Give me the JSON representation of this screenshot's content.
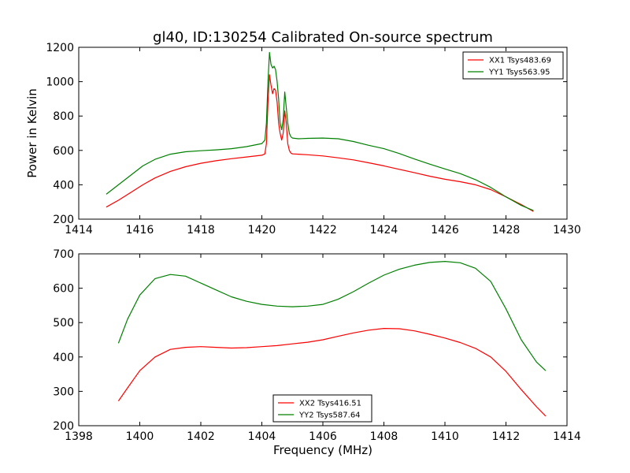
{
  "figure": {
    "title": "gl40, ID:130254 Calibrated On-source spectrum",
    "xlabel": "Frequency (MHz)"
  },
  "chart_data": [
    {
      "type": "line",
      "title": "gl40, ID:130254 Calibrated On-source spectrum",
      "xlabel": "",
      "ylabel": "Power in Kelvin",
      "xlim": [
        1414,
        1430
      ],
      "ylim": [
        200,
        1200
      ],
      "xticks": [
        1414,
        1416,
        1418,
        1420,
        1422,
        1424,
        1426,
        1428,
        1430
      ],
      "yticks": [
        200,
        400,
        600,
        800,
        1000,
        1200
      ],
      "grid": false,
      "legend": "top-right",
      "series": [
        {
          "name": "XX1 Tsys483.69",
          "color": "#ff0000",
          "x": [
            1414.9,
            1415.3,
            1415.7,
            1416.1,
            1416.5,
            1417.0,
            1417.5,
            1418.0,
            1418.5,
            1419.0,
            1419.5,
            1420.0,
            1420.1,
            1420.15,
            1420.2,
            1420.25,
            1420.3,
            1420.35,
            1420.4,
            1420.45,
            1420.5,
            1420.55,
            1420.6,
            1420.65,
            1420.7,
            1420.75,
            1420.8,
            1420.85,
            1420.9,
            1420.95,
            1421.0,
            1421.2,
            1421.5,
            1422.0,
            1422.5,
            1423.0,
            1423.5,
            1424.0,
            1424.5,
            1425.0,
            1425.5,
            1426.0,
            1426.5,
            1427.0,
            1427.5,
            1428.0,
            1428.5,
            1428.9
          ],
          "y": [
            270,
            310,
            355,
            400,
            440,
            478,
            505,
            525,
            540,
            552,
            562,
            572,
            580,
            640,
            880,
            1040,
            980,
            930,
            960,
            950,
            880,
            760,
            700,
            660,
            700,
            830,
            760,
            640,
            600,
            585,
            580,
            578,
            575,
            568,
            557,
            545,
            528,
            510,
            490,
            470,
            450,
            432,
            418,
            400,
            372,
            330,
            285,
            245
          ]
        },
        {
          "name": "YY1 Tsys563.95",
          "color": "#008000",
          "x": [
            1414.9,
            1415.3,
            1415.7,
            1416.1,
            1416.5,
            1417.0,
            1417.5,
            1418.0,
            1418.5,
            1419.0,
            1419.5,
            1420.0,
            1420.1,
            1420.15,
            1420.2,
            1420.25,
            1420.3,
            1420.35,
            1420.4,
            1420.45,
            1420.5,
            1420.55,
            1420.6,
            1420.65,
            1420.7,
            1420.75,
            1420.8,
            1420.85,
            1420.9,
            1420.95,
            1421.0,
            1421.2,
            1421.5,
            1422.0,
            1422.5,
            1423.0,
            1423.5,
            1424.0,
            1424.5,
            1425.0,
            1425.5,
            1426.0,
            1426.5,
            1427.0,
            1427.5,
            1428.0,
            1428.5,
            1428.9
          ],
          "y": [
            345,
            400,
            455,
            510,
            548,
            578,
            592,
            598,
            603,
            610,
            622,
            640,
            660,
            760,
            1000,
            1170,
            1100,
            1080,
            1090,
            1070,
            1000,
            900,
            760,
            720,
            780,
            940,
            850,
            760,
            700,
            680,
            672,
            668,
            670,
            672,
            668,
            652,
            630,
            610,
            582,
            550,
            520,
            492,
            465,
            430,
            385,
            330,
            280,
            250
          ]
        }
      ]
    },
    {
      "type": "line",
      "title": "",
      "xlabel": "Frequency (MHz)",
      "ylabel": "",
      "xlim": [
        1398,
        1414
      ],
      "ylim": [
        200,
        700
      ],
      "xticks": [
        1398,
        1400,
        1402,
        1404,
        1406,
        1408,
        1410,
        1412,
        1414
      ],
      "yticks": [
        200,
        300,
        400,
        500,
        600,
        700
      ],
      "grid": false,
      "legend": "bottom-center",
      "series": [
        {
          "name": "XX2 Tsys416.51",
          "color": "#ff0000",
          "x": [
            1399.3,
            1399.6,
            1400.0,
            1400.5,
            1401.0,
            1401.5,
            1402.0,
            1402.5,
            1403.0,
            1403.5,
            1404.0,
            1404.5,
            1405.0,
            1405.5,
            1406.0,
            1406.5,
            1407.0,
            1407.5,
            1408.0,
            1408.5,
            1409.0,
            1409.5,
            1410.0,
            1410.5,
            1411.0,
            1411.5,
            1412.0,
            1412.5,
            1413.0,
            1413.3
          ],
          "y": [
            272,
            310,
            360,
            400,
            422,
            428,
            430,
            428,
            426,
            427,
            430,
            433,
            438,
            443,
            450,
            460,
            470,
            478,
            483,
            482,
            476,
            466,
            455,
            442,
            425,
            400,
            358,
            305,
            255,
            228
          ]
        },
        {
          "name": "YY2 Tsys587.64",
          "color": "#008000",
          "x": [
            1399.3,
            1399.6,
            1400.0,
            1400.5,
            1401.0,
            1401.5,
            1402.0,
            1402.5,
            1403.0,
            1403.5,
            1404.0,
            1404.5,
            1405.0,
            1405.5,
            1406.0,
            1406.5,
            1407.0,
            1407.5,
            1408.0,
            1408.5,
            1409.0,
            1409.5,
            1410.0,
            1410.5,
            1411.0,
            1411.5,
            1412.0,
            1412.5,
            1413.0,
            1413.3
          ],
          "y": [
            440,
            510,
            580,
            628,
            640,
            635,
            615,
            595,
            575,
            562,
            553,
            548,
            546,
            548,
            553,
            568,
            590,
            615,
            638,
            655,
            667,
            675,
            678,
            674,
            658,
            620,
            540,
            450,
            385,
            360
          ]
        }
      ]
    }
  ]
}
